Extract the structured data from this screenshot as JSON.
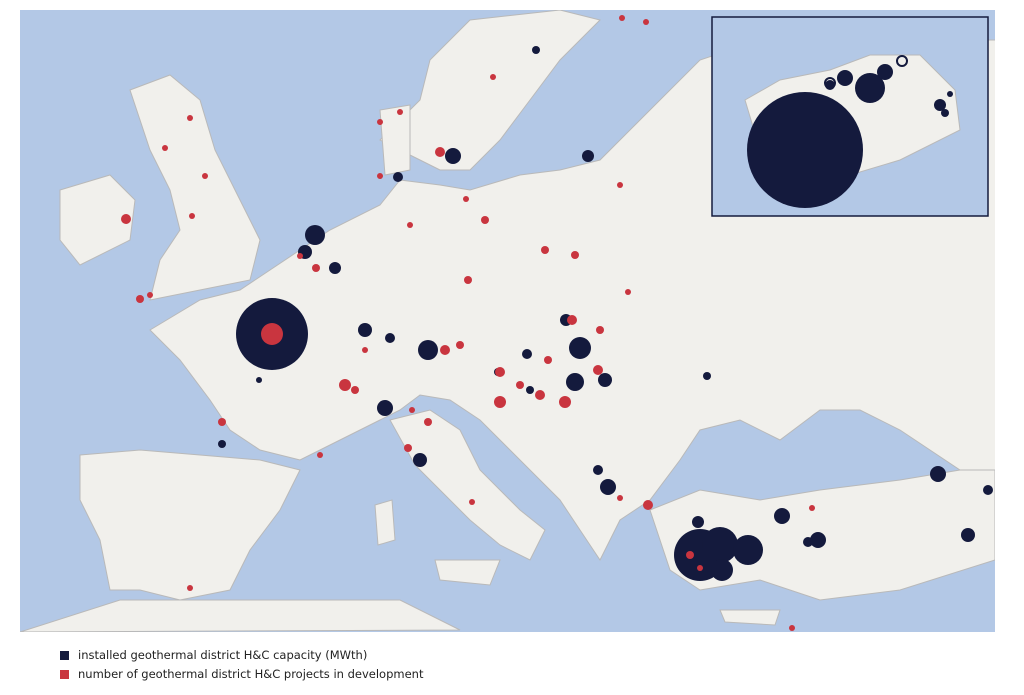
{
  "legend": [
    {
      "label": "installed geothermal district H&C capacity (MWth)",
      "color": "#141a3d"
    },
    {
      "label": "number of geothermal district H&C projects in development",
      "color": "#c9353f"
    }
  ]
}
